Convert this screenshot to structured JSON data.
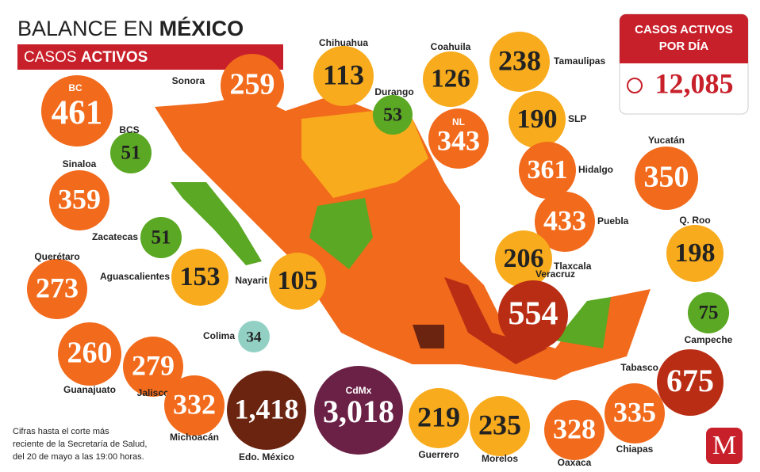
{
  "header": {
    "title_light": "BALANCE EN",
    "title_bold": "MÉXICO",
    "subtitle_light": "CASOS",
    "subtitle_bold": "ACTIVOS"
  },
  "total_box": {
    "title_line1": "CASOS ACTIVOS",
    "title_line2": "POR DÍA",
    "value": "12,085"
  },
  "footnote": [
    "Cifras hasta el corte más",
    "reciente de la Secretaría de Salud,",
    "del 20 de mayo a las 19:00 horas."
  ],
  "logo": "M",
  "states": [
    {
      "name": "BC",
      "value": 461,
      "color": "#f26a1b"
    },
    {
      "name": "Sonora",
      "value": 259,
      "color": "#f26a1b"
    },
    {
      "name": "Chihuahua",
      "value": 113,
      "color": "#f8ab1c"
    },
    {
      "name": "Coahuila",
      "value": 126,
      "color": "#f8ab1c"
    },
    {
      "name": "Tamaulipas",
      "value": 238,
      "color": "#f8ab1c"
    },
    {
      "name": "Durango",
      "value": 53,
      "color": "#5aa823"
    },
    {
      "name": "BCS",
      "value": 51,
      "color": "#5aa823"
    },
    {
      "name": "NL",
      "value": 343,
      "color": "#f26a1b"
    },
    {
      "name": "SLP",
      "value": 190,
      "color": "#f8ab1c"
    },
    {
      "name": "Hidalgo",
      "value": 361,
      "color": "#f26a1b"
    },
    {
      "name": "Yucatán",
      "value": 350,
      "color": "#f26a1b"
    },
    {
      "name": "Sinaloa",
      "value": 359,
      "color": "#f26a1b"
    },
    {
      "name": "Puebla",
      "value": 433,
      "color": "#f26a1b"
    },
    {
      "name": "Zacatecas",
      "value": 51,
      "color": "#5aa823"
    },
    {
      "name": "Q. Roo",
      "value": 198,
      "color": "#f8ab1c"
    },
    {
      "name": "Querétaro",
      "value": 273,
      "color": "#f26a1b"
    },
    {
      "name": "Aguascalientes",
      "value": 153,
      "color": "#f8ab1c"
    },
    {
      "name": "Nayarit",
      "value": 105,
      "color": "#f8ab1c"
    },
    {
      "name": "Tlaxcala",
      "value": 206,
      "color": "#f8ab1c"
    },
    {
      "name": "Veracruz",
      "value": 554,
      "color": "#b92d14"
    },
    {
      "name": "Campeche",
      "value": 75,
      "color": "#5aa823"
    },
    {
      "name": "Colima",
      "value": 34,
      "color": "#93d0c4"
    },
    {
      "name": "Guanajuato",
      "value": 260,
      "color": "#f26a1b"
    },
    {
      "name": "Jalisco",
      "value": 279,
      "color": "#f26a1b"
    },
    {
      "name": "Tabasco",
      "value": 675,
      "color": "#b92d14"
    },
    {
      "name": "Michoacán",
      "value": 332,
      "color": "#f26a1b"
    },
    {
      "name": "Edo. México",
      "value": "1,418",
      "color": "#6b2410"
    },
    {
      "name": "CdMx",
      "value": "3,018",
      "color": "#6b2146"
    },
    {
      "name": "Guerrero",
      "value": 219,
      "color": "#f8ab1c"
    },
    {
      "name": "Morelos",
      "value": 235,
      "color": "#f8ab1c"
    },
    {
      "name": "Oaxaca",
      "value": 328,
      "color": "#f26a1b"
    },
    {
      "name": "Chiapas",
      "value": 335,
      "color": "#f26a1b"
    }
  ]
}
